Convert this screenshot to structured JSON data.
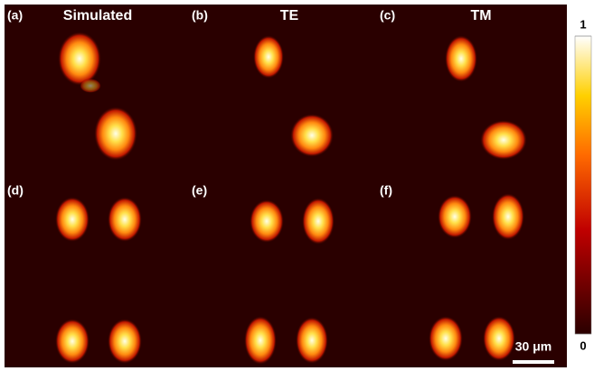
{
  "panels": [
    {
      "label": "(a)",
      "title": "Simulated"
    },
    {
      "label": "(b)",
      "title": "TE"
    },
    {
      "label": "(c)",
      "title": "TM"
    },
    {
      "label": "(d)"
    },
    {
      "label": "(e)"
    },
    {
      "label": "(f)"
    }
  ],
  "colorbar": {
    "lim": [
      0,
      1
    ],
    "ticks": [
      0,
      1
    ]
  },
  "scale_bar": "30 μm"
}
